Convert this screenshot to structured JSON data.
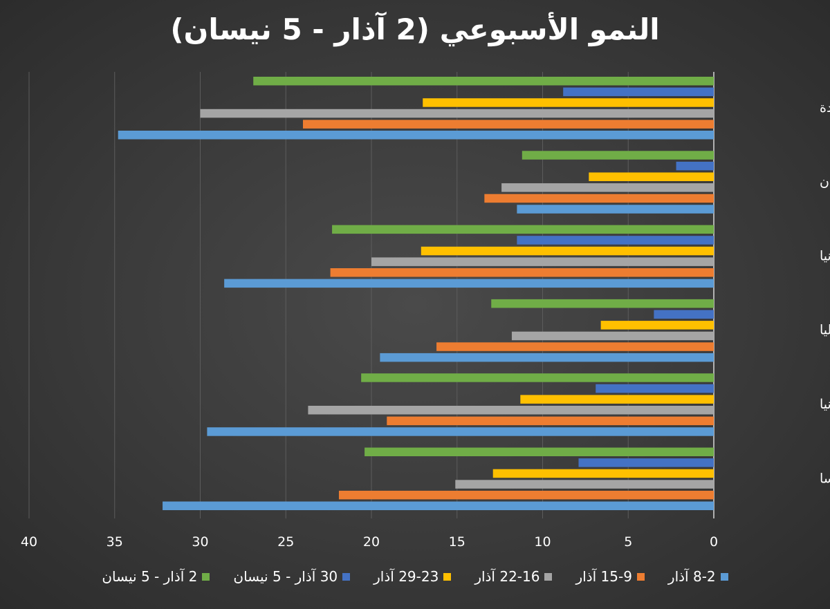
{
  "title": "النمو الأسبوعي (2 آذار - 5 نيسان)",
  "chart_data": {
    "type": "bar",
    "orientation": "horizontal",
    "x_reversed": true,
    "title": "النمو الأسبوعي (2 آذار - 5 نيسان)",
    "xlim": [
      0,
      40
    ],
    "x_ticks": [
      "0",
      "5",
      "10",
      "15",
      "20",
      "25",
      "30",
      "35",
      "40"
    ],
    "grid": true,
    "legend_position": "bottom",
    "categories": [
      "الولايات المتحدة",
      "لبنان",
      "بريطانيا",
      "إيطاليا",
      "ألمانيا",
      "فرنسا"
    ],
    "series": [
      {
        "name": "8-2 آذار",
        "color": "#5B9BD5",
        "values": [
          34.8,
          11.5,
          28.6,
          19.5,
          29.6,
          32.2
        ]
      },
      {
        "name": "15-9 آذار",
        "color": "#ED7D31",
        "values": [
          24.0,
          13.4,
          22.4,
          16.2,
          19.1,
          21.9
        ]
      },
      {
        "name": "22-16 آذار",
        "color": "#A5A5A5",
        "values": [
          30.0,
          12.4,
          20.0,
          11.8,
          23.7,
          15.1
        ]
      },
      {
        "name": "29-23 آذار",
        "color": "#FFC000",
        "values": [
          17.0,
          7.3,
          17.1,
          6.6,
          11.3,
          12.9
        ]
      },
      {
        "name": "30 آذار - 5 نيسان",
        "color": "#4472C4",
        "values": [
          8.8,
          2.2,
          11.5,
          3.5,
          6.9,
          7.9
        ]
      },
      {
        "name": "2 آذار - 5 نيسان",
        "color": "#70AD47",
        "values": [
          26.9,
          11.2,
          22.3,
          13.0,
          20.6,
          20.4
        ]
      }
    ]
  }
}
